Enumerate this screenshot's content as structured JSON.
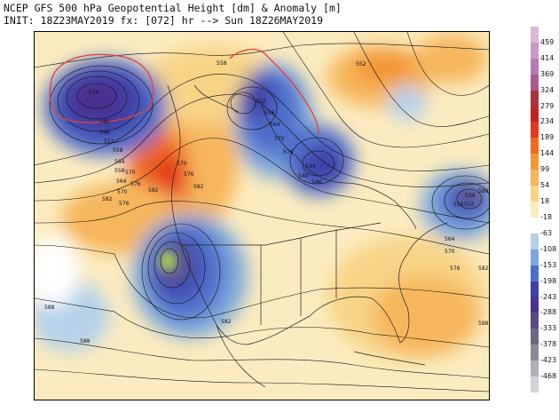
{
  "header": {
    "line1": "NCEP GFS 500 hPa Geopotential Height [dm] & Anomaly [m]",
    "line2": "INIT: 18Z23MAY2019 fx: [072] hr --> Sun 18Z26MAY2019"
  },
  "legend": {
    "labels": [
      "459",
      "414",
      "369",
      "324",
      "279",
      "234",
      "189",
      "144",
      "99",
      "54",
      "18",
      "-18",
      "-63",
      "-108",
      "-153",
      "-198",
      "-243",
      "-288",
      "-333",
      "-378",
      "-423",
      "-468"
    ],
    "colors": [
      "#d7b8d8",
      "#c79ac8",
      "#b67cb5",
      "#a85a8d",
      "#a6363f",
      "#c4222a",
      "#e33a1e",
      "#ee6a22",
      "#f29734",
      "#f6b65c",
      "#f8d487",
      "#fbecbf",
      "#ffffff",
      "#b6d1ea",
      "#7da8dc",
      "#4f6ecc",
      "#3f3fa8",
      "#4b2f8e",
      "#5b4a82",
      "#6c6a83",
      "#8a8a99",
      "#b0b0b8",
      "#d3d3da"
    ]
  },
  "map": {
    "contour_labels": [
      "558",
      "534",
      "546",
      "552",
      "558",
      "564",
      "570",
      "576",
      "582",
      "540",
      "558",
      "564",
      "570",
      "576",
      "588",
      "582",
      "588",
      "582",
      "552",
      "558",
      "564",
      "570",
      "576",
      "546",
      "540",
      "534",
      "570",
      "576",
      "582",
      "552",
      "534",
      "588",
      "552",
      "558",
      "564",
      "570",
      "576",
      "582",
      "588"
    ]
  }
}
